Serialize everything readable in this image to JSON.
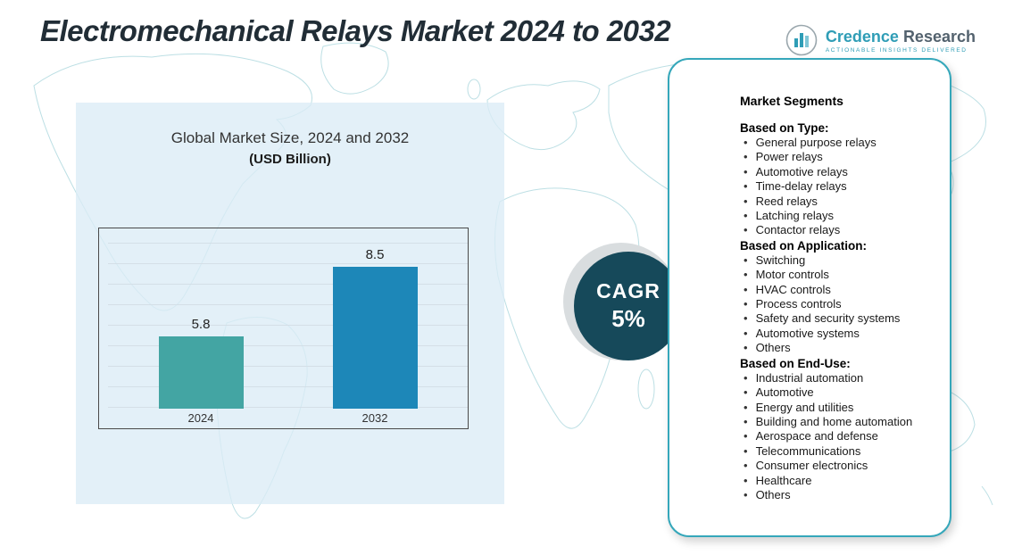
{
  "title": "Electromechanical Relays Market 2024 to 2032",
  "logo": {
    "name_primary": "Credence",
    "name_secondary": "Research",
    "tagline": "ACTIONABLE INSIGHTS DELIVERED"
  },
  "chart_data": {
    "type": "bar",
    "title": "Global Market Size, 2024 and 2032",
    "subtitle": "(USD Billion)",
    "categories": [
      "2024",
      "2032"
    ],
    "values": [
      5.8,
      8.5
    ],
    "bar_colors": [
      "#43a5a3",
      "#1d87b8"
    ],
    "ylabel": "",
    "xlabel": "",
    "ylim": [
      3,
      10
    ],
    "grid": true,
    "legend": false
  },
  "cagr": {
    "label": "CAGR",
    "value": "5%"
  },
  "segments": {
    "heading": "Market Segments",
    "groups": [
      {
        "heading": "Based on Type:",
        "items": [
          "General purpose relays",
          "Power relays",
          "Automotive relays",
          "Time-delay relays",
          "Reed relays",
          "Latching relays",
          "Contactor relays"
        ]
      },
      {
        "heading": "Based on Application:",
        "items": [
          "Switching",
          "Motor controls",
          "HVAC controls",
          "Process controls",
          "Safety and security systems",
          "Automotive systems",
          "Others"
        ]
      },
      {
        "heading": "Based on End-Use:",
        "items": [
          "Industrial automation",
          "Automotive",
          "Energy and utilities",
          "Building and home automation",
          "Aerospace and defense",
          "Telecommunications",
          "Consumer electronics",
          "Healthcare",
          "Others"
        ]
      }
    ]
  },
  "colors": {
    "cagr_background": "#16495a",
    "card_border": "#35a7ba",
    "panel_background": "#dbecf6",
    "accent_teal": "#2f9db6",
    "title_text": "#212d36"
  }
}
